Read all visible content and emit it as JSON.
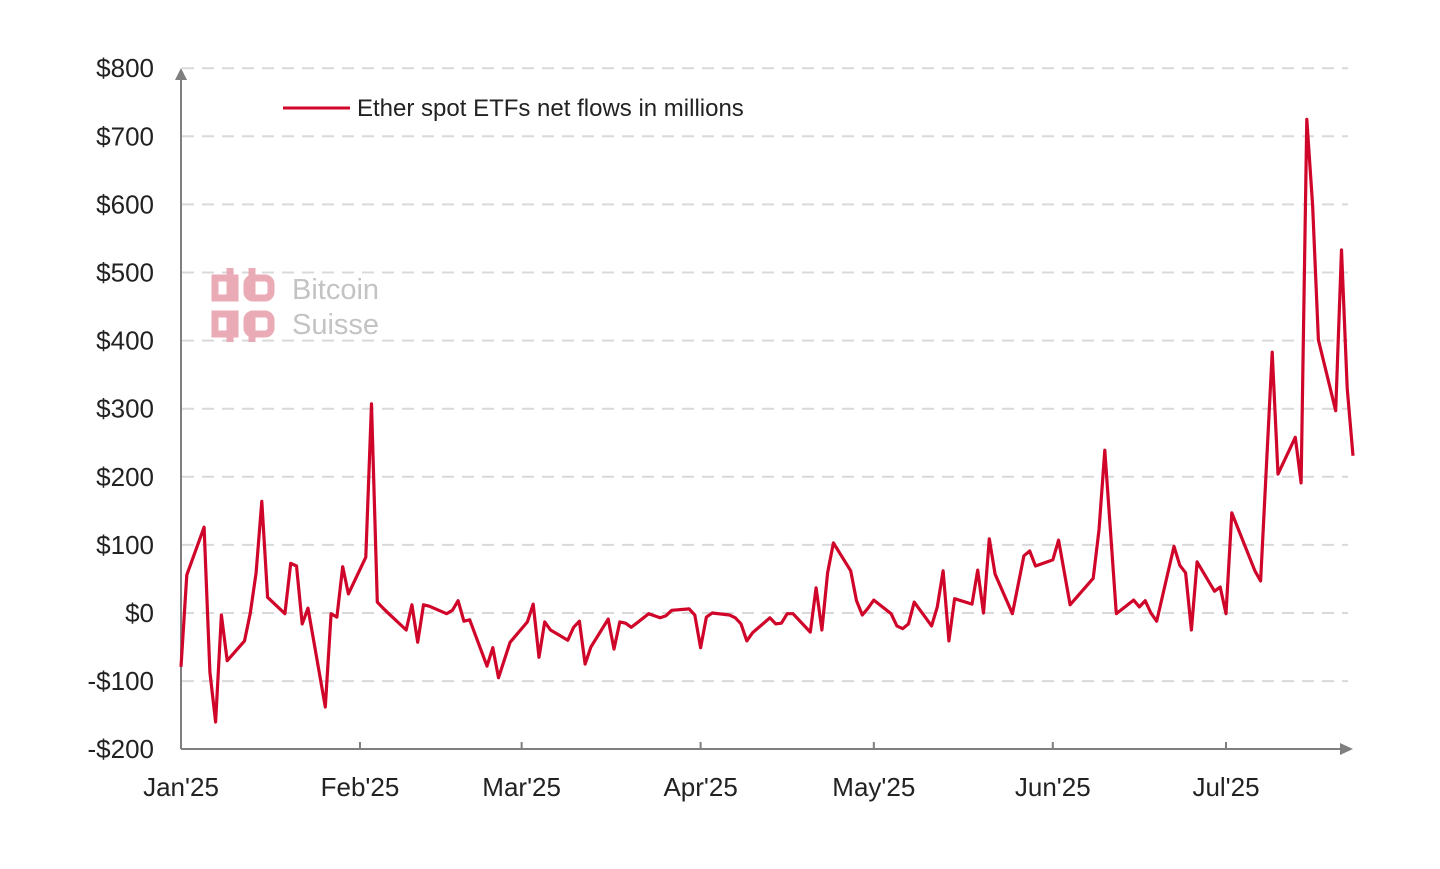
{
  "chart_data": {
    "type": "line",
    "title": "",
    "xlabel": "",
    "ylabel": "",
    "ylim": [
      -200,
      800
    ],
    "yticks": [
      -200,
      -100,
      0,
      100,
      200,
      300,
      400,
      500,
      600,
      700,
      800
    ],
    "ytick_labels": [
      "-$200",
      "-$100",
      "$0",
      "$100",
      "$200",
      "$300",
      "$400",
      "$500",
      "$600",
      "$700",
      "$800"
    ],
    "xticks": [
      "2025-01-01",
      "2025-02-01",
      "2025-03-01",
      "2025-04-01",
      "2025-05-01",
      "2025-06-01",
      "2025-07-01"
    ],
    "xtick_labels": [
      "Jan'25",
      "Feb'25",
      "Mar'25",
      "Apr'25",
      "May'25",
      "Jun'25",
      "Jul'25"
    ],
    "grid": "horizontal dashed",
    "legend_placement": "top-left",
    "series": [
      {
        "name": "Ether spot ETFs net flows in millions",
        "color": "#d0052a",
        "points": [
          [
            "2025-01-01",
            -79
          ],
          [
            "2025-01-02",
            56
          ],
          [
            "2025-01-05",
            126
          ],
          [
            "2025-01-06",
            -87
          ],
          [
            "2025-01-07",
            -160
          ],
          [
            "2025-01-08",
            -3
          ],
          [
            "2025-01-09",
            -70
          ],
          [
            "2025-01-12",
            -41
          ],
          [
            "2025-01-13",
            0
          ],
          [
            "2025-01-14",
            59
          ],
          [
            "2025-01-15",
            164
          ],
          [
            "2025-01-16",
            23
          ],
          [
            "2025-01-19",
            -1
          ],
          [
            "2025-01-20",
            73
          ],
          [
            "2025-01-21",
            69
          ],
          [
            "2025-01-22",
            -16
          ],
          [
            "2025-01-23",
            7
          ],
          [
            "2025-01-26",
            -138
          ],
          [
            "2025-01-27",
            -1
          ],
          [
            "2025-01-28",
            -6
          ],
          [
            "2025-01-29",
            68
          ],
          [
            "2025-01-30",
            28
          ],
          [
            "2025-02-02",
            82
          ],
          [
            "2025-02-03",
            307
          ],
          [
            "2025-02-04",
            16
          ],
          [
            "2025-02-05",
            7
          ],
          [
            "2025-02-06",
            -1
          ],
          [
            "2025-02-09",
            -25
          ],
          [
            "2025-02-10",
            12
          ],
          [
            "2025-02-11",
            -43
          ],
          [
            "2025-02-12",
            12
          ],
          [
            "2025-02-13",
            10
          ],
          [
            "2025-02-16",
            -1
          ],
          [
            "2025-02-17",
            4
          ],
          [
            "2025-02-18",
            18
          ],
          [
            "2025-02-19",
            -12
          ],
          [
            "2025-02-20",
            -10
          ],
          [
            "2025-02-23",
            -78
          ],
          [
            "2025-02-24",
            -51
          ],
          [
            "2025-02-25",
            -95
          ],
          [
            "2025-02-27",
            -43
          ],
          [
            "2025-03-02",
            -13
          ],
          [
            "2025-03-03",
            13
          ],
          [
            "2025-03-04",
            -65
          ],
          [
            "2025-03-05",
            -13
          ],
          [
            "2025-03-06",
            -25
          ],
          [
            "2025-03-09",
            -40
          ],
          [
            "2025-03-10",
            -21
          ],
          [
            "2025-03-11",
            -12
          ],
          [
            "2025-03-12",
            -75
          ],
          [
            "2025-03-13",
            -50
          ],
          [
            "2025-03-16",
            -9
          ],
          [
            "2025-03-17",
            -53
          ],
          [
            "2025-03-18",
            -13
          ],
          [
            "2025-03-19",
            -15
          ],
          [
            "2025-03-20",
            -21
          ],
          [
            "2025-03-23",
            -1
          ],
          [
            "2025-03-24",
            -4
          ],
          [
            "2025-03-25",
            -7
          ],
          [
            "2025-03-26",
            -4
          ],
          [
            "2025-03-27",
            4
          ],
          [
            "2025-03-30",
            6
          ],
          [
            "2025-03-31",
            -3
          ],
          [
            "2025-04-01",
            -51
          ],
          [
            "2025-04-02",
            -6
          ],
          [
            "2025-04-03",
            0
          ],
          [
            "2025-04-06",
            -3
          ],
          [
            "2025-04-07",
            -7
          ],
          [
            "2025-04-08",
            -16
          ],
          [
            "2025-04-09",
            -41
          ],
          [
            "2025-04-10",
            -29
          ],
          [
            "2025-04-13",
            -7
          ],
          [
            "2025-04-14",
            -16
          ],
          [
            "2025-04-15",
            -15
          ],
          [
            "2025-04-16",
            -1
          ],
          [
            "2025-04-17",
            -1
          ],
          [
            "2025-04-20",
            -28
          ],
          [
            "2025-04-21",
            37
          ],
          [
            "2025-04-22",
            -25
          ],
          [
            "2025-04-23",
            59
          ],
          [
            "2025-04-24",
            103
          ],
          [
            "2025-04-27",
            62
          ],
          [
            "2025-04-28",
            18
          ],
          [
            "2025-04-29",
            -3
          ],
          [
            "2025-04-30",
            7
          ],
          [
            "2025-05-01",
            19
          ],
          [
            "2025-05-04",
            -1
          ],
          [
            "2025-05-05",
            -19
          ],
          [
            "2025-05-06",
            -23
          ],
          [
            "2025-05-07",
            -16
          ],
          [
            "2025-05-08",
            16
          ],
          [
            "2025-05-11",
            -19
          ],
          [
            "2025-05-12",
            9
          ],
          [
            "2025-05-13",
            62
          ],
          [
            "2025-05-14",
            -41
          ],
          [
            "2025-05-15",
            21
          ],
          [
            "2025-05-18",
            13
          ],
          [
            "2025-05-19",
            63
          ],
          [
            "2025-05-20",
            0
          ],
          [
            "2025-05-21",
            109
          ],
          [
            "2025-05-22",
            57
          ],
          [
            "2025-05-25",
            -1
          ],
          [
            "2025-05-27",
            84
          ],
          [
            "2025-05-28",
            91
          ],
          [
            "2025-05-29",
            69
          ],
          [
            "2025-06-01",
            78
          ],
          [
            "2025-06-02",
            107
          ],
          [
            "2025-06-04",
            12
          ],
          [
            "2025-06-08",
            51
          ],
          [
            "2025-06-09",
            122
          ],
          [
            "2025-06-10",
            239
          ],
          [
            "2025-06-12",
            -1
          ],
          [
            "2025-06-15",
            19
          ],
          [
            "2025-06-16",
            9
          ],
          [
            "2025-06-17",
            18
          ],
          [
            "2025-06-18",
            0
          ],
          [
            "2025-06-19",
            -12
          ],
          [
            "2025-06-22",
            98
          ],
          [
            "2025-06-23",
            70
          ],
          [
            "2025-06-24",
            59
          ],
          [
            "2025-06-25",
            -25
          ],
          [
            "2025-06-26",
            75
          ],
          [
            "2025-06-29",
            32
          ],
          [
            "2025-06-30",
            38
          ],
          [
            "2025-07-01",
            -1
          ],
          [
            "2025-07-02",
            147
          ],
          [
            "2025-07-06",
            62
          ],
          [
            "2025-07-07",
            47
          ],
          [
            "2025-07-09",
            383
          ],
          [
            "2025-07-10",
            204
          ],
          [
            "2025-07-13",
            258
          ],
          [
            "2025-07-14",
            191
          ],
          [
            "2025-07-15",
            725
          ],
          [
            "2025-07-16",
            599
          ],
          [
            "2025-07-17",
            401
          ],
          [
            "2025-07-20",
            297
          ],
          [
            "2025-07-21",
            533
          ],
          [
            "2025-07-22",
            330
          ],
          [
            "2025-07-23",
            231
          ]
        ]
      }
    ]
  },
  "watermark": {
    "line1": "Bitcoin",
    "line2": "Suisse",
    "icon": "bitcoin-suisse-logo",
    "icon_color": "#e8a3b0",
    "text_color": "#bdbdbd"
  },
  "colors": {
    "axis": "#7f7f7f",
    "grid": "#d9d9d9",
    "text": "#222222"
  }
}
